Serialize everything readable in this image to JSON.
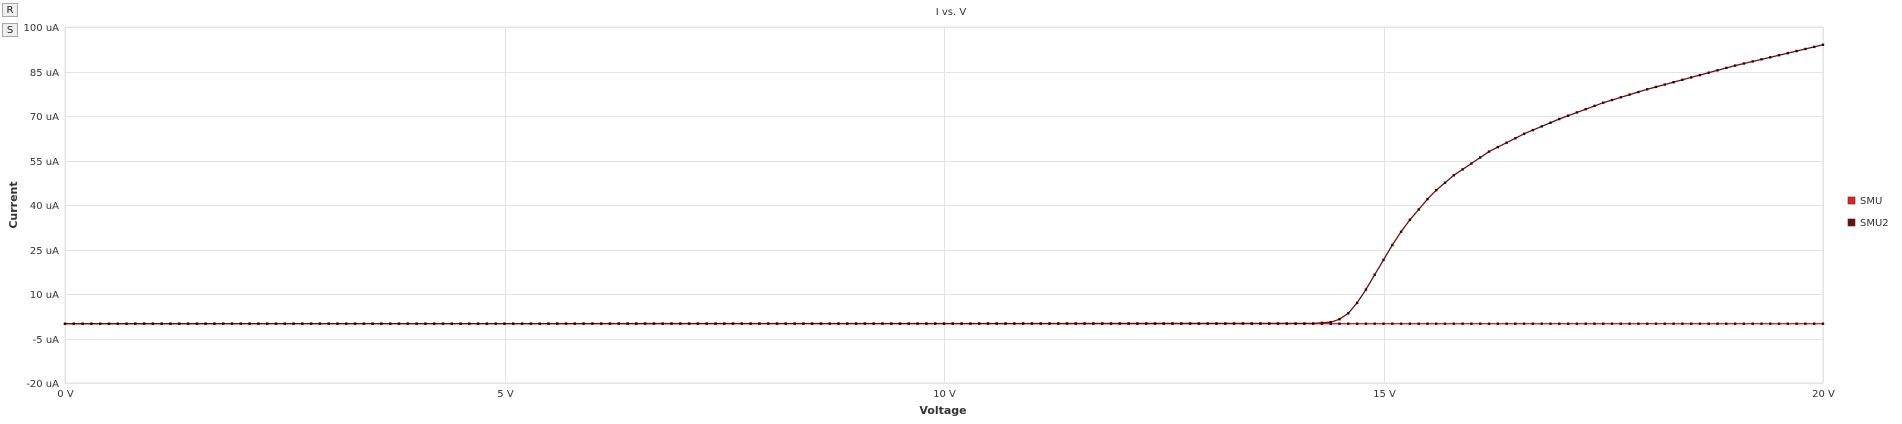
{
  "toolbar": {
    "reset_label": "R",
    "save_label": "S"
  },
  "chart_data": {
    "type": "line",
    "title": "I vs. V",
    "xlabel": "Voltage",
    "ylabel": "Current",
    "xlim": [
      0,
      20
    ],
    "ylim": [
      -20,
      100
    ],
    "x_ticks": [
      {
        "value": 0,
        "label": "0 V"
      },
      {
        "value": 5,
        "label": "5 V"
      },
      {
        "value": 10,
        "label": "10 V"
      },
      {
        "value": 15,
        "label": "15 V"
      },
      {
        "value": 20,
        "label": "20 V"
      }
    ],
    "y_ticks": [
      {
        "value": 100,
        "label": "100 uA"
      },
      {
        "value": 85,
        "label": "85 uA"
      },
      {
        "value": 70,
        "label": "70 uA"
      },
      {
        "value": 55,
        "label": "55 uA"
      },
      {
        "value": 40,
        "label": "40 uA"
      },
      {
        "value": 25,
        "label": "25 uA"
      },
      {
        "value": 10,
        "label": "10 uA"
      },
      {
        "value": -5,
        "label": "-5 uA"
      },
      {
        "value": -20,
        "label": "-20 uA"
      }
    ],
    "grid": true,
    "legend_position": "right",
    "series": [
      {
        "name": "SMU",
        "color": "#e8231f",
        "x": [
          0,
          20
        ],
        "y": [
          0,
          0
        ]
      },
      {
        "name": "SMU2",
        "color": "#6b0f0f",
        "x": [
          0,
          14.2,
          14.4,
          14.5,
          14.6,
          14.7,
          14.8,
          14.9,
          15.0,
          15.1,
          15.2,
          15.3,
          15.4,
          15.5,
          15.6,
          15.8,
          16.0,
          16.2,
          16.4,
          16.6,
          16.8,
          17.0,
          17.5,
          18.0,
          18.5,
          19.0,
          19.5,
          20.0
        ],
        "y": [
          0,
          0.1,
          0.5,
          1.5,
          3.5,
          7,
          11.5,
          16.5,
          21.5,
          26.5,
          31,
          35,
          38.5,
          42,
          45,
          50,
          54,
          58,
          61,
          64,
          66.5,
          69,
          74.5,
          79,
          83,
          87,
          90.5,
          94
        ]
      }
    ]
  }
}
